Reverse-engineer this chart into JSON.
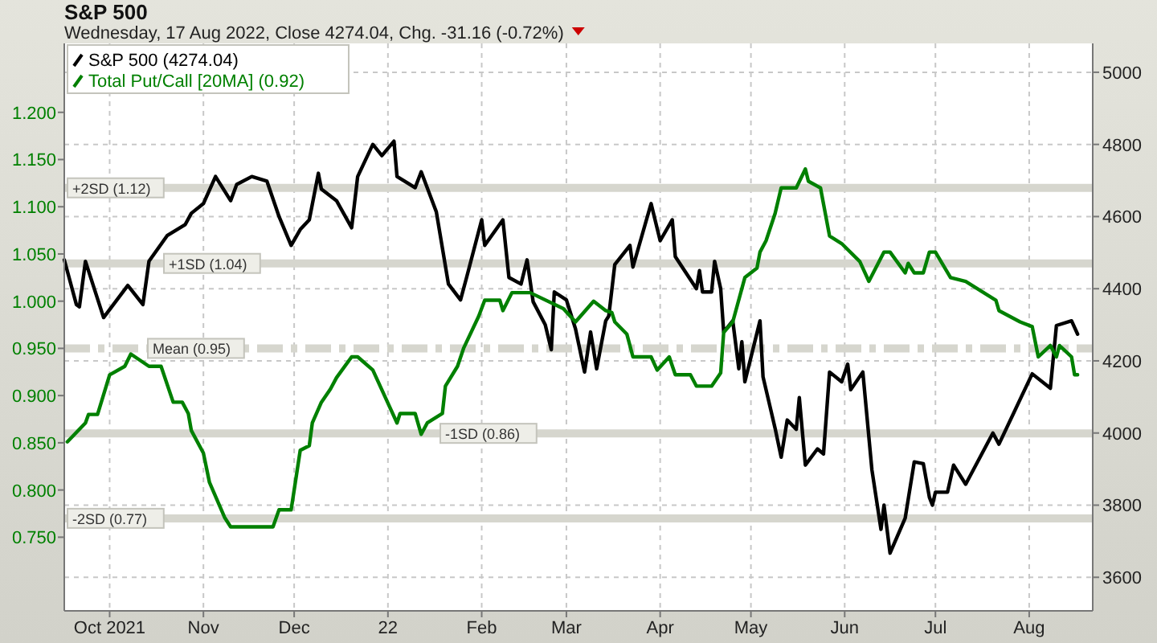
{
  "chart_data": {
    "type": "line",
    "title": "S&P 500",
    "subtitle": "Wednesday, 17 Aug 2022, Close 4274.04, Chg. -31.16 (-0.72%)",
    "xlim": [
      "2021-09-16",
      "2022-08-22"
    ],
    "xticks": [
      {
        "value": "2021-10-01",
        "label": "Oct 2021"
      },
      {
        "value": "2021-11-01",
        "label": "Nov"
      },
      {
        "value": "2021-12-01",
        "label": "Dec"
      },
      {
        "value": "2022-01-01",
        "label": "22"
      },
      {
        "value": "2022-02-01",
        "label": "Feb"
      },
      {
        "value": "2022-03-01",
        "label": "Mar"
      },
      {
        "value": "2022-04-01",
        "label": "Apr"
      },
      {
        "value": "2022-05-01",
        "label": "May"
      },
      {
        "value": "2022-06-01",
        "label": "Jun"
      },
      {
        "value": "2022-07-01",
        "label": "Jul"
      },
      {
        "value": "2022-08-01",
        "label": "Aug"
      }
    ],
    "ylim": [
      0.672,
      1.273
    ],
    "yticks": [
      {
        "value": 0.75,
        "label": "0.750"
      },
      {
        "value": 0.8,
        "label": "0.800"
      },
      {
        "value": 0.85,
        "label": "0.850"
      },
      {
        "value": 0.9,
        "label": "0.900"
      },
      {
        "value": 0.95,
        "label": "0.950"
      },
      {
        "value": 1,
        "label": "1.000"
      },
      {
        "value": 1.05,
        "label": "1.050"
      },
      {
        "value": 1.1,
        "label": "1.100"
      },
      {
        "value": 1.15,
        "label": "1.150"
      },
      {
        "value": 1.2,
        "label": "1.200"
      }
    ],
    "y2lim": [
      3507,
      5080
    ],
    "y2ticks": [
      3600,
      3800,
      4000,
      4200,
      4400,
      4600,
      4800,
      5000
    ],
    "grid": true,
    "legend": "top left",
    "ref_lines": [
      {
        "axis": "y",
        "value": 1.12,
        "label": "+2SD (1.12)",
        "color": "#d6d6ce",
        "line_style": "solid"
      },
      {
        "axis": "y",
        "value": 1.04,
        "label": "+1SD (1.04)",
        "color": "#d6d6ce",
        "line_style": "solid"
      },
      {
        "axis": "y",
        "value": 0.95,
        "label": "Mean (0.95)",
        "color": "#d6d6ce",
        "line_style": "dashed"
      },
      {
        "axis": "y",
        "value": 0.86,
        "label": "-1SD (0.86)",
        "color": "#d6d6ce",
        "line_style": "solid"
      },
      {
        "axis": "y",
        "value": 0.77,
        "label": "-2SD (0.77)",
        "color": "#d6d6ce",
        "line_style": "solid"
      }
    ],
    "series": [
      {
        "name": "S&P 500 (4274.04)",
        "color": "#000000",
        "axis": "y2",
        "x": [
          "2021-09-16",
          "2021-09-20",
          "2021-09-21",
          "2021-09-23",
          "2021-09-29",
          "2021-10-07",
          "2021-10-12",
          "2021-10-14",
          "2021-10-20",
          "2021-10-26",
          "2021-10-28",
          "2021-11-01",
          "2021-11-05",
          "2021-11-10",
          "2021-11-12",
          "2021-11-17",
          "2021-11-22",
          "2021-11-26",
          "2021-11-30",
          "2021-12-03",
          "2021-12-06",
          "2021-12-09",
          "2021-12-10",
          "2021-12-15",
          "2021-12-20",
          "2021-12-22",
          "2021-12-27",
          "2021-12-30",
          "2022-01-03",
          "2022-01-04",
          "2022-01-10",
          "2022-01-12",
          "2022-01-17",
          "2022-01-21",
          "2022-01-25",
          "2022-01-27",
          "2022-02-01",
          "2022-02-02",
          "2022-02-08",
          "2022-02-10",
          "2022-02-14",
          "2022-02-16",
          "2022-02-18",
          "2022-02-22",
          "2022-02-24",
          "2022-02-25",
          "2022-03-01",
          "2022-03-04",
          "2022-03-07",
          "2022-03-09",
          "2022-03-11",
          "2022-03-14",
          "2022-03-15",
          "2022-03-17",
          "2022-03-22",
          "2022-03-23",
          "2022-03-29",
          "2022-04-01",
          "2022-04-05",
          "2022-04-06",
          "2022-04-13",
          "2022-04-14",
          "2022-04-15",
          "2022-04-18",
          "2022-04-19",
          "2022-04-21",
          "2022-04-22",
          "2022-04-25",
          "2022-04-27",
          "2022-04-28",
          "2022-04-29",
          "2022-05-04",
          "2022-05-05",
          "2022-05-09",
          "2022-05-11",
          "2022-05-13",
          "2022-05-16",
          "2022-05-17",
          "2022-05-19",
          "2022-05-23",
          "2022-05-25",
          "2022-05-27",
          "2022-05-31",
          "2022-06-02",
          "2022-06-03",
          "2022-06-07",
          "2022-06-10",
          "2022-06-13",
          "2022-06-14",
          "2022-06-16",
          "2022-06-21",
          "2022-06-24",
          "2022-06-27",
          "2022-06-29",
          "2022-06-30",
          "2022-07-01",
          "2022-07-05",
          "2022-07-07",
          "2022-07-11",
          "2022-07-20",
          "2022-07-22",
          "2022-08-02",
          "2022-08-08",
          "2022-08-10",
          "2022-08-15",
          "2022-08-17"
        ],
        "values": [
          4480,
          4356,
          4350,
          4476,
          4320,
          4409,
          4356,
          4476,
          4547,
          4578,
          4609,
          4636,
          4711,
          4644,
          4689,
          4711,
          4698,
          4600,
          4520,
          4564,
          4591,
          4720,
          4676,
          4644,
          4569,
          4711,
          4800,
          4769,
          4809,
          4711,
          4680,
          4724,
          4613,
          4413,
          4369,
          4431,
          4591,
          4520,
          4591,
          4431,
          4413,
          4480,
          4364,
          4300,
          4231,
          4391,
          4369,
          4289,
          4169,
          4280,
          4178,
          4311,
          4324,
          4467,
          4520,
          4460,
          4636,
          4533,
          4591,
          4489,
          4400,
          4450,
          4391,
          4391,
          4476,
          4400,
          4280,
          4311,
          4178,
          4253,
          4142,
          4311,
          4156,
          4013,
          3933,
          4036,
          4010,
          4098,
          3911,
          3956,
          3942,
          4169,
          4142,
          4191,
          4120,
          4169,
          3898,
          3733,
          3800,
          3667,
          3764,
          3920,
          3915,
          3822,
          3800,
          3836,
          3836,
          3911,
          3858,
          4000,
          3969,
          4164,
          4124,
          4298,
          4311,
          4274
        ]
      },
      {
        "name": "Total Put/Call [20MA] (0.92)",
        "color": "#008000",
        "x": [
          "2021-09-17",
          "2021-09-23",
          "2021-09-24",
          "2021-09-27",
          "2021-10-01",
          "2021-10-06",
          "2021-10-08",
          "2021-10-14",
          "2021-10-18",
          "2021-10-22",
          "2021-10-25",
          "2021-10-27",
          "2021-10-28",
          "2021-11-01",
          "2021-11-03",
          "2021-11-08",
          "2021-11-10",
          "2021-11-24",
          "2021-11-26",
          "2021-11-30",
          "2021-12-03",
          "2021-12-06",
          "2021-12-07",
          "2021-12-10",
          "2021-12-13",
          "2021-12-15",
          "2021-12-20",
          "2021-12-22",
          "2021-12-27",
          "2022-01-04",
          "2022-01-05",
          "2022-01-10",
          "2022-01-12",
          "2022-01-14",
          "2022-01-19",
          "2022-01-20",
          "2022-01-24",
          "2022-01-26",
          "2022-01-31",
          "2022-02-02",
          "2022-02-07",
          "2022-02-08",
          "2022-02-11",
          "2022-02-17",
          "2022-02-28",
          "2022-03-04",
          "2022-03-10",
          "2022-03-14",
          "2022-03-16",
          "2022-03-17",
          "2022-03-21",
          "2022-03-23",
          "2022-03-29",
          "2022-03-31",
          "2022-04-04",
          "2022-04-06",
          "2022-04-11",
          "2022-04-13",
          "2022-04-18",
          "2022-04-21",
          "2022-04-22",
          "2022-04-25",
          "2022-04-29",
          "2022-05-03",
          "2022-05-04",
          "2022-05-06",
          "2022-05-09",
          "2022-05-11",
          "2022-05-16",
          "2022-05-19",
          "2022-05-20",
          "2022-05-24",
          "2022-05-27",
          "2022-05-31",
          "2022-06-06",
          "2022-06-09",
          "2022-06-14",
          "2022-06-16",
          "2022-06-21",
          "2022-06-22",
          "2022-06-24",
          "2022-06-27",
          "2022-06-29",
          "2022-07-01",
          "2022-07-06",
          "2022-07-11",
          "2022-07-21",
          "2022-07-22",
          "2022-07-29",
          "2022-08-02",
          "2022-08-04",
          "2022-08-08",
          "2022-08-10",
          "2022-08-11",
          "2022-08-15",
          "2022-08-16",
          "2022-08-17"
        ],
        "values": [
          0.851,
          0.871,
          0.88,
          0.88,
          0.922,
          0.931,
          0.944,
          0.931,
          0.931,
          0.893,
          0.893,
          0.881,
          0.863,
          0.839,
          0.808,
          0.771,
          0.761,
          0.761,
          0.779,
          0.779,
          0.842,
          0.847,
          0.871,
          0.893,
          0.907,
          0.919,
          0.941,
          0.941,
          0.927,
          0.871,
          0.881,
          0.881,
          0.859,
          0.871,
          0.881,
          0.91,
          0.931,
          0.95,
          0.984,
          1.001,
          1.001,
          0.99,
          1.009,
          1.009,
          0.992,
          0.978,
          1.0,
          0.99,
          0.988,
          0.978,
          0.965,
          0.941,
          0.941,
          0.927,
          0.941,
          0.922,
          0.922,
          0.91,
          0.91,
          0.924,
          0.967,
          0.978,
          1.025,
          1.035,
          1.052,
          1.064,
          1.093,
          1.12,
          1.12,
          1.14,
          1.127,
          1.12,
          1.069,
          1.061,
          1.042,
          1.021,
          1.052,
          1.052,
          1.03,
          1.04,
          1.03,
          1.03,
          1.052,
          1.052,
          1.025,
          1.021,
          1.001,
          0.99,
          0.978,
          0.973,
          0.941,
          0.953,
          0.941,
          0.953,
          0.941,
          0.922,
          0.922
        ]
      }
    ]
  }
}
